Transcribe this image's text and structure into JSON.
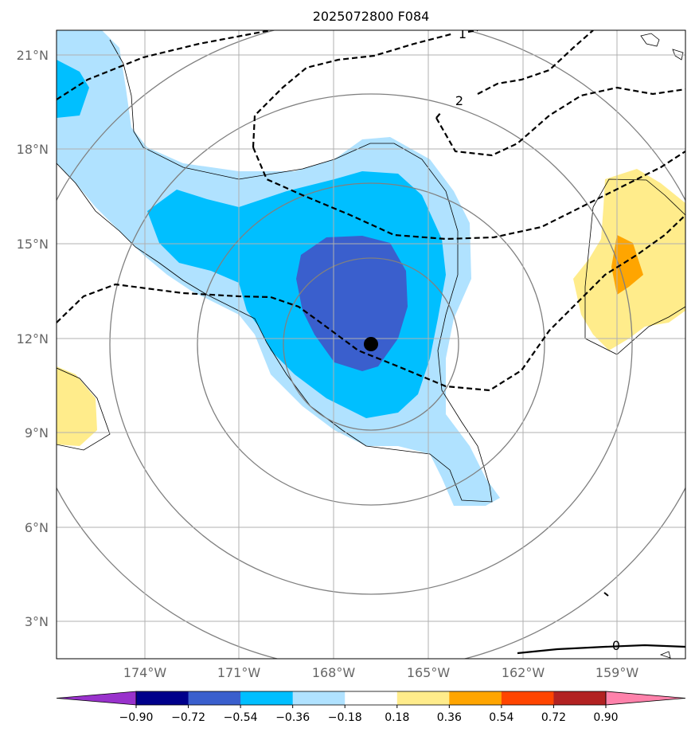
{
  "title": "2025072800 F084",
  "lat_labels": [
    "21°N",
    "18°N",
    "15°N",
    "12°N",
    "9°N",
    "6°N",
    "3°N"
  ],
  "lon_labels": [
    "174°W",
    "171°W",
    "168°W",
    "165°W",
    "162°W",
    "159°W"
  ],
  "colorbar": {
    "colors": [
      "#9932CC",
      "#00008B",
      "#3A5FCD",
      "#00BFFF",
      "#B0E2FF",
      "#FFFFFF",
      "#FFEC8B",
      "#FFA500",
      "#FF4500",
      "#B22222",
      "#FF82AB"
    ],
    "tick_labels": [
      "−0.90",
      "−0.72",
      "−0.54",
      "−0.36",
      "−0.18",
      "0.18",
      "0.36",
      "0.54",
      "0.72",
      "0.90"
    ]
  },
  "contour_labels": [
    "1",
    "2",
    "0"
  ],
  "storm_marker": "storm-center"
}
